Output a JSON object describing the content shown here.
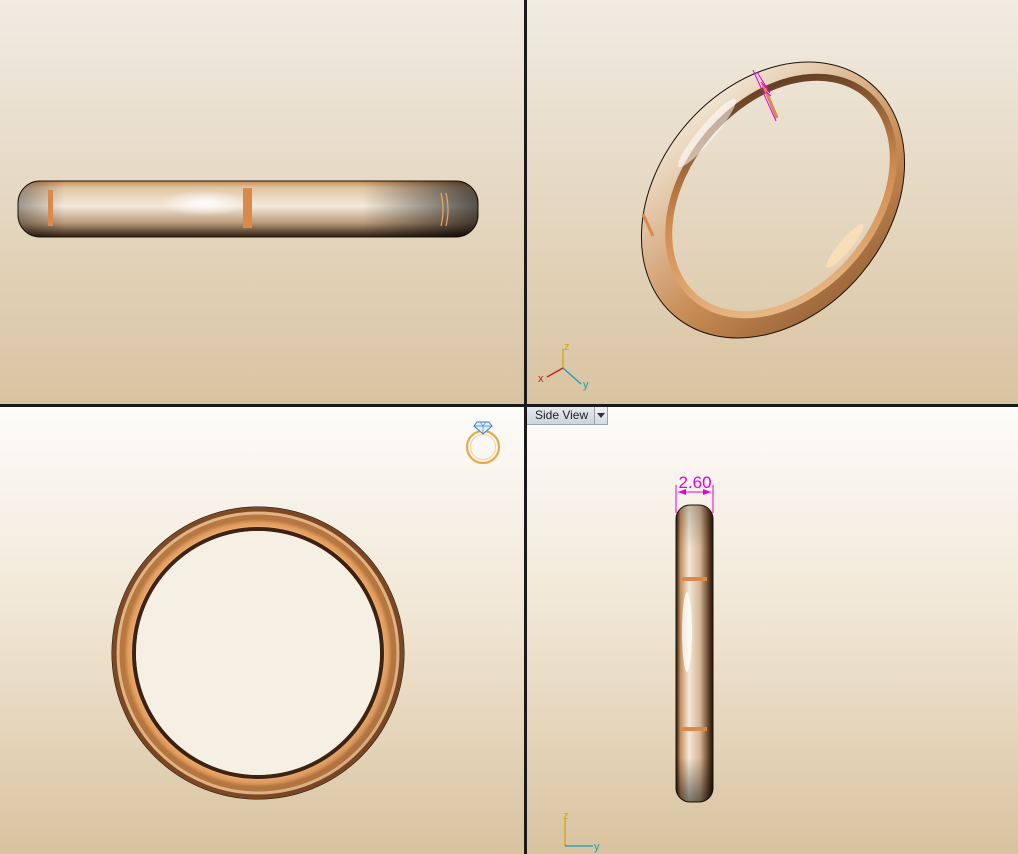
{
  "viewports": {
    "top_left": {},
    "top_right": {
      "axes": {
        "z": "z",
        "x": "x",
        "y": "y"
      }
    },
    "bottom_left": {},
    "bottom_right": {
      "tab_label": "Side View",
      "dimension": "2.60",
      "axes": {
        "z": "z",
        "y": "y"
      }
    }
  },
  "colors": {
    "metal_light": "#f3e6d2",
    "metal_mid": "#d99a5f",
    "metal_dark": "#3a2414",
    "dimension": "#e000e0",
    "axis_x": "#c0201b",
    "axis_y": "#1c9bb0",
    "axis_z": "#d8a21a"
  },
  "icons": [
    "ring-preview-icon",
    "axis-gizmo-icon",
    "dropdown-arrow-icon"
  ]
}
